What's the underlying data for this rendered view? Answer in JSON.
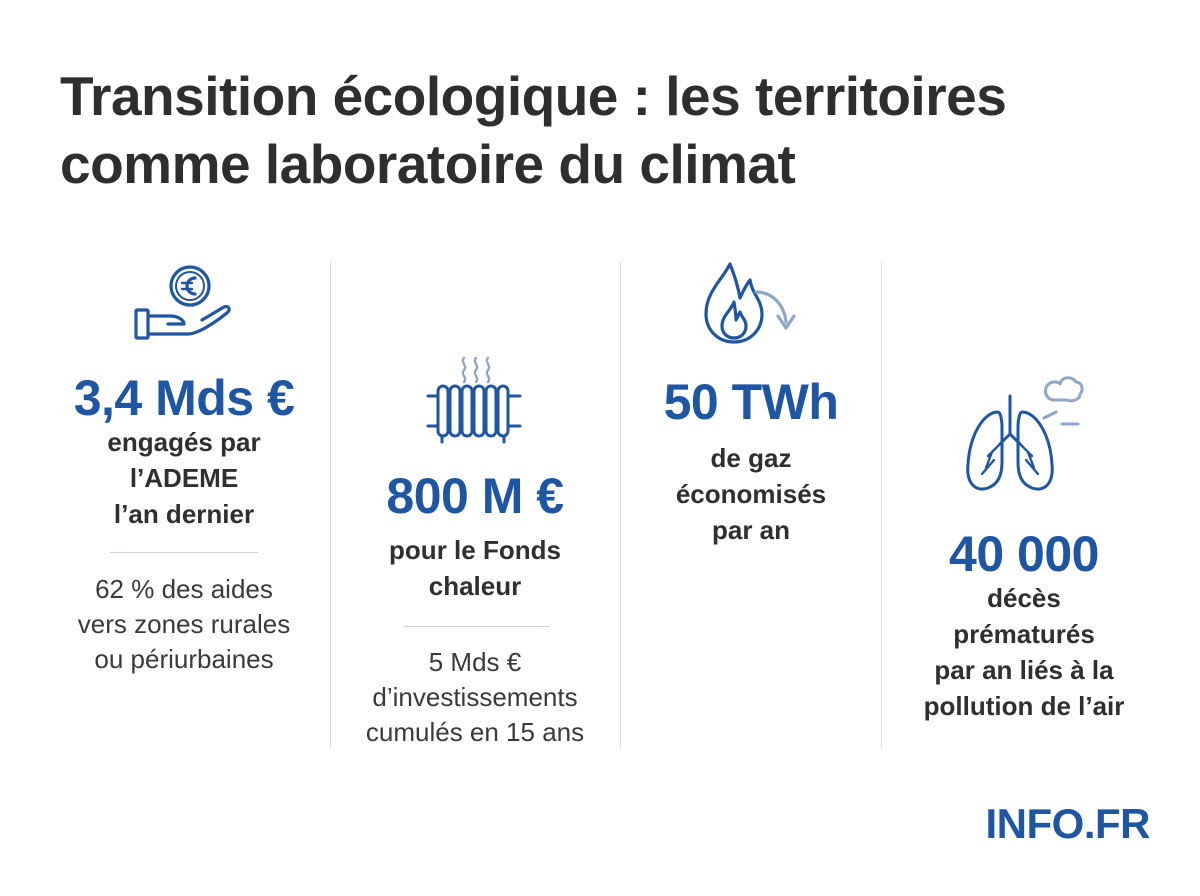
{
  "title": {
    "line1": "Transition écologique : les territoires",
    "line2": "comme laboratoire du climat"
  },
  "colors": {
    "accent": "#1f56a3",
    "text": "#2e2e2e",
    "divider": "#d7dde5"
  },
  "stats": [
    {
      "icon": "hand-euro-coin-icon",
      "value": "3,4 Mds €",
      "desc": [
        "engagés par",
        "l’ADEME",
        "l’an dernier"
      ],
      "note": [
        "62 % des aides",
        "vers zones rurales",
        "ou périurbaines"
      ]
    },
    {
      "icon": "radiator-icon",
      "value": "800 M €",
      "desc": [
        "pour le Fonds",
        "chaleur"
      ],
      "note": [
        "5 Mds €",
        "d’investissements",
        "cumulés en 15 ans"
      ]
    },
    {
      "icon": "gas-flame-down-icon",
      "value": "50 TWh",
      "desc": [
        "de gaz",
        "économisés",
        "par an"
      ]
    },
    {
      "icon": "lungs-pollution-icon",
      "value": "40 000",
      "desc": [
        "décès",
        "prématurés",
        "par an liés à la",
        "pollution de l’air"
      ]
    }
  ],
  "brand": "INFO.FR"
}
